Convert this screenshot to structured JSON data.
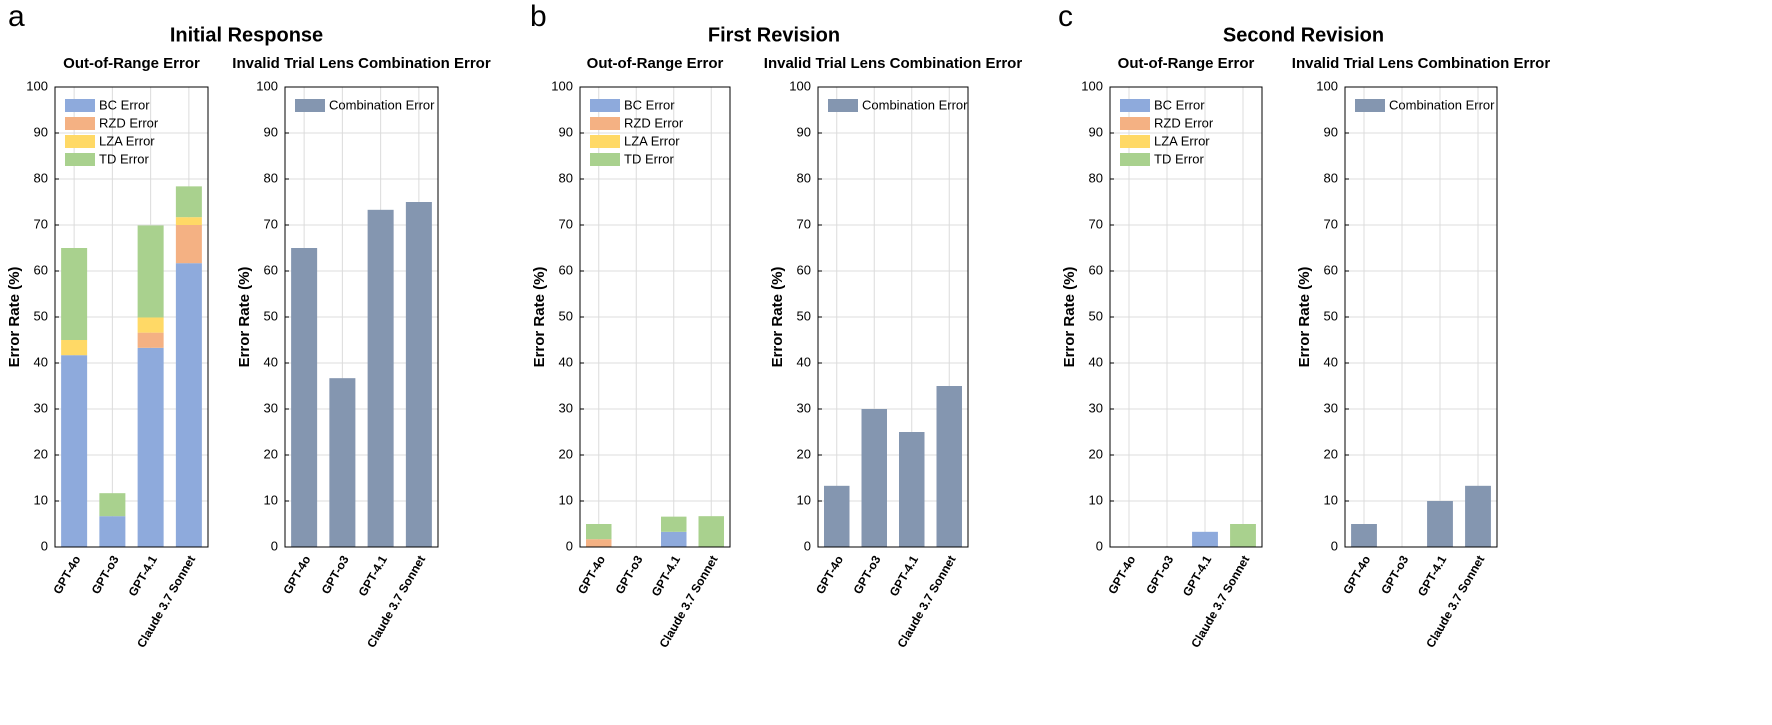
{
  "panels": [
    {
      "label": "a",
      "title": "Initial Response"
    },
    {
      "label": "b",
      "title": "First Revision"
    },
    {
      "label": "c",
      "title": "Second Revision"
    }
  ],
  "chart_data": [
    {
      "type": "stacked_bar",
      "title": "Out-of-Range Error",
      "ylabel": "Error Rate (%)",
      "categories": [
        "GPT-4o",
        "GPT-o3",
        "GPT-4.1",
        "Claude 3.7 Sonnet"
      ],
      "series": [
        {
          "name": "BC Error",
          "color": "#8eaadc",
          "values": [
            41.7,
            6.7,
            43.3,
            61.7
          ]
        },
        {
          "name": "RZD Error",
          "color": "#f4b183",
          "values": [
            0,
            0,
            3.3,
            8.3
          ]
        },
        {
          "name": "LZA Error",
          "color": "#ffd966",
          "values": [
            3.3,
            0,
            3.3,
            1.7
          ]
        },
        {
          "name": "TD Error",
          "color": "#a9d18e",
          "values": [
            20,
            5,
            20,
            6.7
          ]
        }
      ],
      "ylim": [
        0,
        100
      ],
      "yticks": [
        0,
        10,
        20,
        30,
        40,
        50,
        60,
        70,
        80,
        90,
        100
      ],
      "grid": true,
      "legend": "upper left"
    },
    {
      "type": "bar",
      "title": "Invalid Trial Lens Combination Error",
      "ylabel": "Error Rate (%)",
      "categories": [
        "GPT-4o",
        "GPT-o3",
        "GPT-4.1",
        "Claude 3.7 Sonnet"
      ],
      "series": [
        {
          "name": "Combination Error",
          "color": "#8496b0",
          "values": [
            65,
            36.7,
            73.3,
            75
          ]
        }
      ],
      "ylim": [
        0,
        100
      ],
      "yticks": [
        0,
        10,
        20,
        30,
        40,
        50,
        60,
        70,
        80,
        90,
        100
      ],
      "grid": true,
      "legend": "upper left"
    },
    {
      "type": "stacked_bar",
      "title": "Out-of-Range Error",
      "ylabel": "Error Rate (%)",
      "categories": [
        "GPT-4o",
        "GPT-o3",
        "GPT-4.1",
        "Claude 3.7 Sonnet"
      ],
      "series": [
        {
          "name": "BC Error",
          "color": "#8eaadc",
          "values": [
            0,
            0,
            3.3,
            0
          ]
        },
        {
          "name": "RZD Error",
          "color": "#f4b183",
          "values": [
            1.7,
            0,
            0,
            0
          ]
        },
        {
          "name": "LZA Error",
          "color": "#ffd966",
          "values": [
            0,
            0,
            0,
            0
          ]
        },
        {
          "name": "TD Error",
          "color": "#a9d18e",
          "values": [
            3.3,
            0,
            3.3,
            6.7
          ]
        }
      ],
      "ylim": [
        0,
        100
      ],
      "yticks": [
        0,
        10,
        20,
        30,
        40,
        50,
        60,
        70,
        80,
        90,
        100
      ],
      "grid": true,
      "legend": "upper left"
    },
    {
      "type": "bar",
      "title": "Invalid Trial Lens Combination Error",
      "ylabel": "Error Rate (%)",
      "categories": [
        "GPT-4o",
        "GPT-o3",
        "GPT-4.1",
        "Claude 3.7 Sonnet"
      ],
      "series": [
        {
          "name": "Combination Error",
          "color": "#8496b0",
          "values": [
            13.3,
            30,
            25,
            35
          ]
        }
      ],
      "ylim": [
        0,
        100
      ],
      "yticks": [
        0,
        10,
        20,
        30,
        40,
        50,
        60,
        70,
        80,
        90,
        100
      ],
      "grid": true,
      "legend": "upper left"
    },
    {
      "type": "stacked_bar",
      "title": "Out-of-Range Error",
      "ylabel": "Error Rate (%)",
      "categories": [
        "GPT-4o",
        "GPT-o3",
        "GPT-4.1",
        "Claude 3.7 Sonnet"
      ],
      "series": [
        {
          "name": "BC Error",
          "color": "#8eaadc",
          "values": [
            0,
            0,
            3.3,
            0
          ]
        },
        {
          "name": "RZD Error",
          "color": "#f4b183",
          "values": [
            0,
            0,
            0,
            0
          ]
        },
        {
          "name": "LZA Error",
          "color": "#ffd966",
          "values": [
            0,
            0,
            0,
            0
          ]
        },
        {
          "name": "TD Error",
          "color": "#a9d18e",
          "values": [
            0,
            0,
            0,
            5
          ]
        }
      ],
      "ylim": [
        0,
        100
      ],
      "yticks": [
        0,
        10,
        20,
        30,
        40,
        50,
        60,
        70,
        80,
        90,
        100
      ],
      "grid": true,
      "legend": "upper left"
    },
    {
      "type": "bar",
      "title": "Invalid Trial Lens Combination Error",
      "ylabel": "Error Rate (%)",
      "categories": [
        "GPT-4o",
        "GPT-o3",
        "GPT-4.1",
        "Claude 3.7 Sonnet"
      ],
      "series": [
        {
          "name": "Combination Error",
          "color": "#8496b0",
          "values": [
            5,
            0,
            10,
            13.3
          ]
        }
      ],
      "ylim": [
        0,
        100
      ],
      "yticks": [
        0,
        10,
        20,
        30,
        40,
        50,
        60,
        70,
        80,
        90,
        100
      ],
      "grid": true,
      "legend": "upper left"
    }
  ]
}
